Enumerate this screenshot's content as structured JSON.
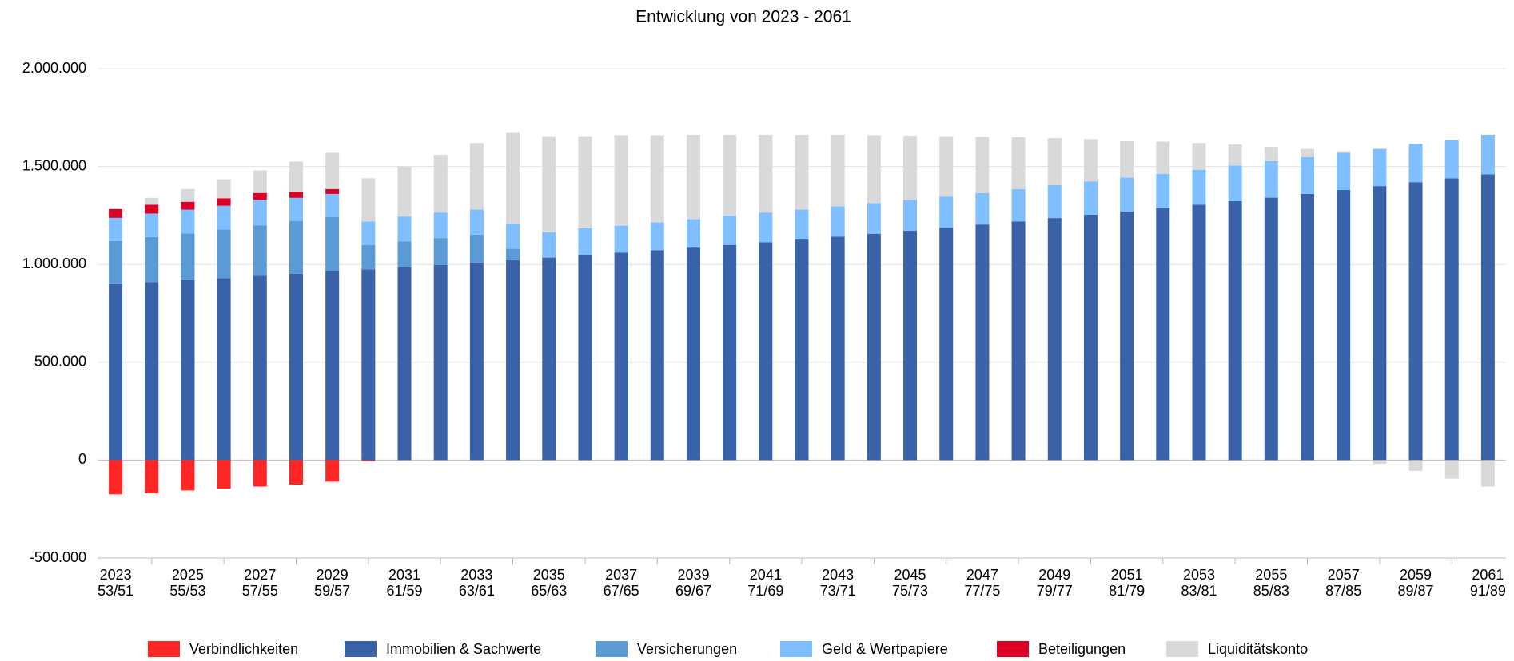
{
  "chart_data": {
    "type": "stacked_bar",
    "title": "Entwicklung von 2023 - 2061",
    "categories": [
      "2023",
      null,
      "2025",
      null,
      "2027",
      null,
      "2029",
      null,
      "2031",
      null,
      "2033",
      null,
      "2035",
      null,
      "2037",
      null,
      "2039",
      null,
      "2041",
      null,
      "2043",
      null,
      "2045",
      null,
      "2047",
      null,
      "2049",
      null,
      "2051",
      null,
      "2053",
      null,
      "2055",
      null,
      "2057",
      null,
      "2059",
      null,
      "2061"
    ],
    "category_sublabels": [
      "53/51",
      null,
      "55/53",
      null,
      "57/55",
      null,
      "59/57",
      null,
      "61/59",
      null,
      "63/61",
      null,
      "65/63",
      null,
      "67/65",
      null,
      "69/67",
      null,
      "71/69",
      null,
      "73/71",
      null,
      "75/73",
      null,
      "77/75",
      null,
      "79/77",
      null,
      "81/79",
      null,
      "83/81",
      null,
      "85/83",
      null,
      "87/85",
      null,
      "89/87",
      null,
      "91/89"
    ],
    "series": [
      {
        "name": "Verbindlichkeiten",
        "color": "#ff2626",
        "values": [
          -175000,
          -170000,
          -155000,
          -145000,
          -135000,
          -125000,
          -110000,
          -5000,
          0,
          0,
          0,
          0,
          0,
          0,
          0,
          0,
          0,
          0,
          0,
          0,
          0,
          0,
          0,
          0,
          0,
          0,
          0,
          0,
          0,
          0,
          0,
          0,
          0,
          0,
          0,
          0,
          0,
          0,
          0
        ]
      },
      {
        "name": "Immobilien & Sachwerte",
        "color": "#3a62a8",
        "values": [
          900000,
          910000,
          920000,
          930000,
          942000,
          953000,
          965000,
          975000,
          985000,
          997000,
          1010000,
          1022000,
          1035000,
          1048000,
          1060000,
          1073000,
          1086000,
          1100000,
          1113000,
          1127000,
          1142000,
          1157000,
          1172000,
          1188000,
          1204000,
          1220000,
          1237000,
          1254000,
          1271000,
          1288000,
          1305000,
          1323000,
          1341000,
          1360000,
          1380000,
          1400000,
          1420000,
          1440000,
          1460000
        ]
      },
      {
        "name": "Versicherungen",
        "color": "#5b9bd5",
        "values": [
          220000,
          230000,
          238000,
          248000,
          258000,
          268000,
          278000,
          125000,
          133000,
          138000,
          142000,
          58000,
          0,
          0,
          0,
          0,
          0,
          0,
          0,
          0,
          0,
          0,
          0,
          0,
          0,
          0,
          0,
          0,
          0,
          0,
          0,
          0,
          0,
          0,
          0,
          0,
          0,
          0,
          0
        ]
      },
      {
        "name": "Geld & Wertpapiere",
        "color": "#7fbfff",
        "values": [
          118000,
          120000,
          122000,
          122000,
          130000,
          119000,
          117000,
          120000,
          127000,
          130000,
          128000,
          130000,
          130000,
          137000,
          138000,
          142000,
          146000,
          148000,
          152000,
          153000,
          155000,
          156000,
          158000,
          159000,
          161000,
          165000,
          168000,
          169000,
          172000,
          175000,
          178000,
          182000,
          186000,
          188000,
          190000,
          190000,
          195000,
          197000,
          202000
        ]
      },
      {
        "name": "Beteiligungen",
        "color": "#dc0026",
        "values": [
          45000,
          45000,
          40000,
          38000,
          35000,
          30000,
          25000,
          0,
          0,
          0,
          0,
          0,
          0,
          0,
          0,
          0,
          0,
          0,
          0,
          0,
          0,
          0,
          0,
          0,
          0,
          0,
          0,
          0,
          0,
          0,
          0,
          0,
          0,
          0,
          0,
          0,
          0,
          0,
          0
        ]
      },
      {
        "name": "Liquiditätskonto",
        "color": "#d9d9d9",
        "values": [
          0,
          35000,
          65000,
          97000,
          115000,
          155000,
          185000,
          220000,
          255000,
          295000,
          340000,
          465000,
          490000,
          470000,
          462000,
          445000,
          430000,
          414000,
          397000,
          382000,
          365000,
          347000,
          328000,
          308000,
          287000,
          265000,
          240000,
          217000,
          190000,
          164000,
          137000,
          107000,
          73000,
          42000,
          8000,
          -20000,
          -55000,
          -95000,
          -135000
        ]
      }
    ],
    "ylim": [
      -500000,
      2000000
    ],
    "yticks": [
      {
        "value": -500000,
        "label": "-500.000"
      },
      0,
      {
        "value": 500000,
        "label": "500.000"
      },
      {
        "value": 1000000,
        "label": "1.000.000"
      },
      {
        "value": 1500000,
        "label": "1.500.000"
      },
      {
        "value": 2000000,
        "label": "2.000.000"
      }
    ],
    "grid": true,
    "legend": "bottom"
  }
}
